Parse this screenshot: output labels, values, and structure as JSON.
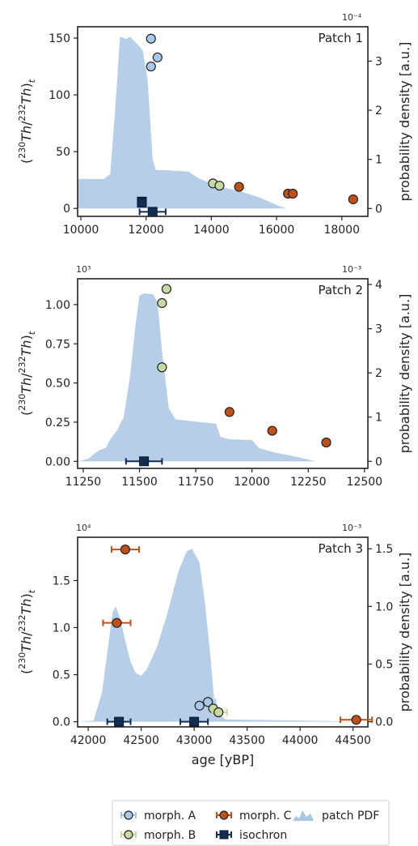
{
  "chart_data": [
    {
      "type": "scatter",
      "title": "Patch 1",
      "ylabel": "(230Th/232Th)t",
      "y2label": "probability density [a.u.]",
      "xlim": [
        9900,
        18800
      ],
      "ylim": [
        -7,
        160
      ],
      "y2lim": [
        -0.16,
        3.7
      ],
      "xticks": [
        "10000",
        "12000",
        "14000",
        "16000",
        "18000"
      ],
      "yticks": [
        "0",
        "50",
        "100",
        "150"
      ],
      "y2ticks": [
        "0",
        "1",
        "2",
        "3"
      ],
      "y2_exponent": "10⁻⁴",
      "series": [
        {
          "name": "morph. A",
          "color": "#a9c8ea",
          "points": [
            [
              12150,
              149.5
            ],
            [
              12150,
              125
            ],
            [
              12350,
              133
            ]
          ]
        },
        {
          "name": "morph. B",
          "color": "#c6d9a2",
          "points": [
            [
              14050,
              22
            ],
            [
              14250,
              20
            ]
          ]
        },
        {
          "name": "morph. C",
          "color": "#c0501a",
          "points": [
            [
              14850,
              19
            ],
            [
              16350,
              13
            ],
            [
              16500,
              13
            ],
            [
              18350,
              8
            ]
          ]
        },
        {
          "name": "isochron",
          "color": "#132c52",
          "points": [
            [
              11870,
              6,
              0,
              0
            ],
            [
              11870,
              5,
              0,
              0
            ],
            [
              12200,
              -3,
              400,
              400
            ]
          ]
        }
      ],
      "pdf": {
        "name": "patch PDF",
        "color": "#a9c6e3",
        "points": [
          [
            9900,
            0.6
          ],
          [
            10700,
            0.6
          ],
          [
            10900,
            0.7
          ],
          [
            11050,
            2.0
          ],
          [
            11200,
            3.5
          ],
          [
            11400,
            3.45
          ],
          [
            11500,
            3.5
          ],
          [
            11650,
            3.4
          ],
          [
            11800,
            3.3
          ],
          [
            11900,
            3.2
          ],
          [
            12050,
            2.6
          ],
          [
            12200,
            1.0
          ],
          [
            12300,
            0.78
          ],
          [
            12600,
            0.78
          ],
          [
            13300,
            0.75
          ],
          [
            13600,
            0.62
          ],
          [
            14200,
            0.45
          ],
          [
            14900,
            0.35
          ],
          [
            15500,
            0.22
          ],
          [
            16000,
            0.07
          ],
          [
            16300,
            0.0
          ]
        ]
      }
    },
    {
      "type": "scatter",
      "title": "Patch 2",
      "ylabel": "(230Th/232Th)t",
      "y2label": "probability density [a.u.]",
      "xlim": [
        11225,
        12515
      ],
      "ylim": [
        -0.045,
        1.165
      ],
      "y2lim": [
        -0.16,
        4.13
      ],
      "xticks": [
        "11250",
        "11500",
        "11750",
        "12000",
        "12250",
        "12500"
      ],
      "yticks": [
        "0.00",
        "0.25",
        "0.50",
        "0.75",
        "1.00"
      ],
      "y2ticks": [
        "0",
        "1",
        "2",
        "3",
        "4"
      ],
      "y_exponent": "10³",
      "y2_exponent": "10⁻³",
      "series": [
        {
          "name": "morph. B",
          "color": "#c6d9a2",
          "points": [
            [
              11620,
              1.1,
              15,
              15
            ],
            [
              11600,
              1.01,
              0,
              0
            ],
            [
              11600,
              0.6,
              0,
              0
            ]
          ]
        },
        {
          "name": "morph. C",
          "color": "#c0501a",
          "points": [
            [
              11900,
              0.315,
              12,
              12
            ],
            [
              12090,
              0.195,
              12,
              12
            ],
            [
              12330,
              0.12,
              15,
              15
            ]
          ]
        },
        {
          "name": "isochron",
          "color": "#132c52",
          "points": [
            [
              11520,
              0.0,
              80,
              80
            ]
          ]
        }
      ],
      "pdf": {
        "name": "patch PDF",
        "color": "#a9c6e3",
        "points": [
          [
            11225,
            0.0
          ],
          [
            11270,
            0.05
          ],
          [
            11320,
            0.25
          ],
          [
            11350,
            0.3
          ],
          [
            11370,
            0.5
          ],
          [
            11400,
            0.7
          ],
          [
            11430,
            1.0
          ],
          [
            11460,
            2.0
          ],
          [
            11480,
            3.0
          ],
          [
            11500,
            3.75
          ],
          [
            11520,
            3.8
          ],
          [
            11560,
            3.78
          ],
          [
            11580,
            3.6
          ],
          [
            11600,
            2.5
          ],
          [
            11630,
            1.2
          ],
          [
            11660,
            0.95
          ],
          [
            11750,
            0.9
          ],
          [
            11840,
            0.85
          ],
          [
            11860,
            0.55
          ],
          [
            11900,
            0.5
          ],
          [
            12000,
            0.48
          ],
          [
            12030,
            0.3
          ],
          [
            12100,
            0.2
          ],
          [
            12200,
            0.1
          ],
          [
            12280,
            0.0
          ]
        ]
      }
    },
    {
      "type": "scatter",
      "title": "Patch 3",
      "ylabel": "(230Th/232Th)t",
      "y2label": "probability density [a.u.]",
      "xlabel": "age [yBP]",
      "xlim": [
        41900,
        44640
      ],
      "ylim": [
        -0.055,
        1.96
      ],
      "y2lim": [
        -0.045,
        1.6
      ],
      "xticks": [
        "42000",
        "42500",
        "43000",
        "43500",
        "44000",
        "44500"
      ],
      "yticks": [
        "0.0",
        "0.5",
        "1.0",
        "1.5"
      ],
      "y2ticks": [
        "0.0",
        "0.5",
        "1.0",
        "1.5"
      ],
      "y_exponent": "10⁴",
      "y2_exponent": "10⁻³",
      "series": [
        {
          "name": "morph. A",
          "color": "#a9c8ea",
          "points": [
            [
              43130,
              0.21,
              60,
              70
            ],
            [
              43050,
              0.17,
              0,
              0
            ]
          ]
        },
        {
          "name": "morph. B",
          "color": "#c6d9a2",
          "points": [
            [
              43180,
              0.14,
              0,
              0
            ],
            [
              43230,
              0.1,
              60,
              80
            ]
          ]
        },
        {
          "name": "morph. C",
          "color": "#c0501a",
          "points": [
            [
              42350,
              1.83,
              130,
              130
            ],
            [
              42270,
              1.05,
              130,
              130
            ],
            [
              44530,
              0.02,
              150,
              150
            ]
          ]
        },
        {
          "name": "isochron",
          "color": "#132c52",
          "points": [
            [
              42290,
              0.0,
              110,
              110
            ],
            [
              43000,
              0.0,
              130,
              130
            ]
          ]
        }
      ],
      "pdf": {
        "name": "patch PDF",
        "color": "#a9c6e3",
        "points": [
          [
            41900,
            0.0
          ],
          [
            42050,
            0.01
          ],
          [
            42130,
            0.25
          ],
          [
            42180,
            0.6
          ],
          [
            42230,
            0.95
          ],
          [
            42260,
            1.0
          ],
          [
            42300,
            0.9
          ],
          [
            42350,
            0.7
          ],
          [
            42400,
            0.52
          ],
          [
            42450,
            0.42
          ],
          [
            42500,
            0.4
          ],
          [
            42550,
            0.45
          ],
          [
            42650,
            0.65
          ],
          [
            42750,
            0.95
          ],
          [
            42850,
            1.3
          ],
          [
            42930,
            1.48
          ],
          [
            42980,
            1.5
          ],
          [
            43050,
            1.38
          ],
          [
            43100,
            1.05
          ],
          [
            43150,
            0.6
          ],
          [
            43200,
            0.08
          ],
          [
            43300,
            0.02
          ],
          [
            44640,
            0.0
          ]
        ]
      }
    }
  ],
  "legend": {
    "items": [
      {
        "label": "morph. A",
        "color": "#a9c8ea",
        "marker": "circle-errorbar"
      },
      {
        "label": "morph. B",
        "color": "#c6d9a2",
        "marker": "circle-errorbar"
      },
      {
        "label": "morph. C",
        "color": "#c0501a",
        "marker": "circle-errorbar"
      },
      {
        "label": "isochron",
        "color": "#132c52",
        "marker": "square-errorbar"
      },
      {
        "label": "patch PDF",
        "color": "#a9c6e3",
        "marker": "area"
      }
    ]
  }
}
